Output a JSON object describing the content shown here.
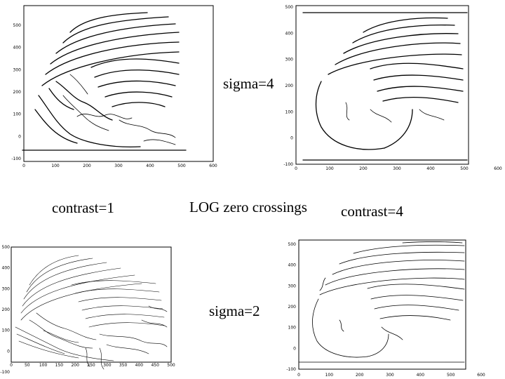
{
  "captions": {
    "sigma_top": "sigma=4",
    "sigma_bottom": "sigma=2",
    "contrast_left": "contrast=1",
    "contrast_right": "contrast=4",
    "center_title": "LOG zero crossings"
  },
  "panels": {
    "top_left": {
      "yticks": [
        "500",
        "400",
        "300",
        "200",
        "100",
        "0",
        "-100"
      ],
      "xticks": [
        "0",
        "100",
        "200",
        "300",
        "400",
        "500",
        "600"
      ]
    },
    "top_right": {
      "yticks": [
        "500",
        "400",
        "300",
        "200",
        "100",
        "0",
        "-100"
      ],
      "xticks": [
        "0",
        "100",
        "200",
        "300",
        "400",
        "500",
        "600"
      ]
    },
    "bottom_left": {
      "yticks": [
        "500",
        "400",
        "300",
        "200",
        "100",
        "0",
        "-100"
      ],
      "xticks": [
        "0",
        "50",
        "100",
        "150",
        "200",
        "250",
        "300",
        "350",
        "400",
        "450",
        "500"
      ]
    },
    "bottom_right": {
      "yticks": [
        "500",
        "400",
        "300",
        "200",
        "100",
        "0",
        "-100"
      ],
      "xticks": [
        "0",
        "100",
        "200",
        "300",
        "400",
        "500",
        "600"
      ]
    }
  }
}
